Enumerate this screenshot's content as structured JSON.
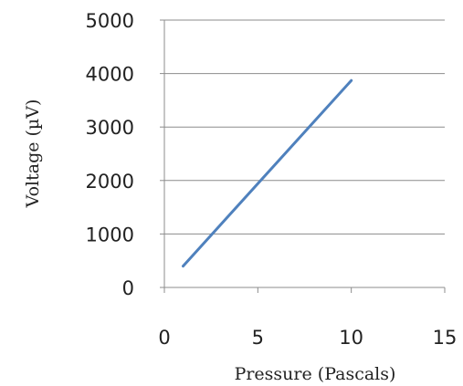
{
  "chart_data": {
    "type": "line",
    "title": "",
    "xlabel": "Pressure (Pascals)",
    "ylabel": "Voltage (µV)",
    "xlim": [
      0,
      15
    ],
    "ylim": [
      0,
      5000
    ],
    "x_ticks": [
      0,
      5,
      10,
      15
    ],
    "y_ticks": [
      0,
      1000,
      2000,
      3000,
      4000,
      5000
    ],
    "grid": "horizontal",
    "legend": "none",
    "series": [
      {
        "x": [
          1,
          10
        ],
        "values": [
          400,
          3870
        ],
        "color": "#4f81bd"
      }
    ],
    "colors": {
      "line": "#4f81bd",
      "grid": "#8c8c8c",
      "axis": "#8c8c8c"
    }
  }
}
